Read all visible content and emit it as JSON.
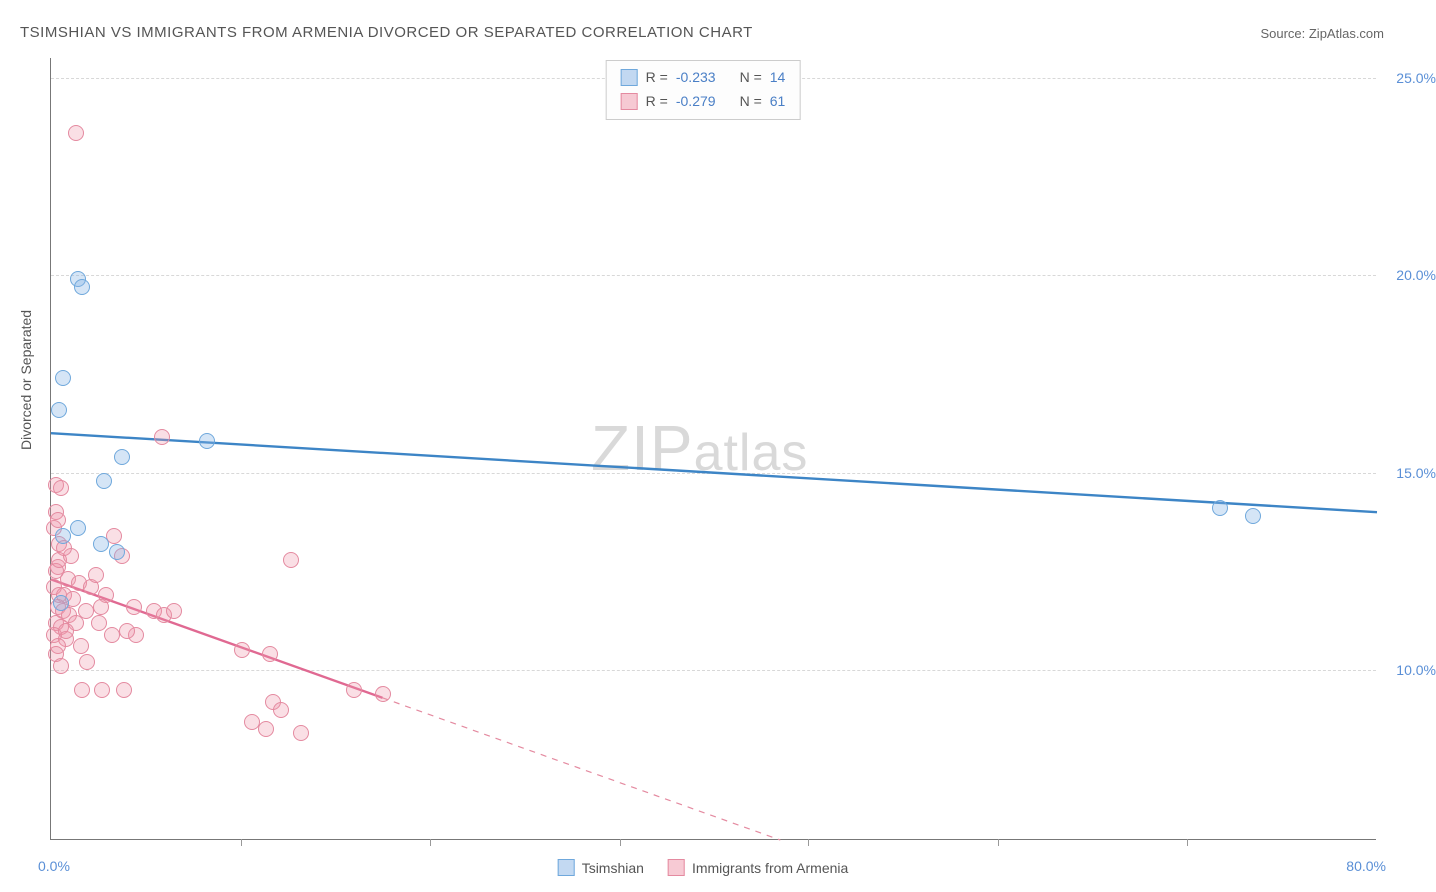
{
  "title": "TSIMSHIAN VS IMMIGRANTS FROM ARMENIA DIVORCED OR SEPARATED CORRELATION CHART",
  "source_label": "Source: ",
  "source_name": "ZipAtlas.com",
  "ylabel": "Divorced or Separated",
  "watermark_a": "ZIP",
  "watermark_b": "atlas",
  "xaxis": {
    "min": 0.0,
    "max": 80.0,
    "label_min": "0.0%",
    "label_max": "80.0%",
    "tick_positions_pct": [
      14.3,
      28.6,
      42.9,
      57.1,
      71.4,
      85.7
    ]
  },
  "yaxis": {
    "min": 5.7,
    "max": 25.5,
    "ticks": [
      {
        "v": 10.0,
        "label": "10.0%"
      },
      {
        "v": 15.0,
        "label": "15.0%"
      },
      {
        "v": 20.0,
        "label": "20.0%"
      },
      {
        "v": 25.0,
        "label": "25.0%"
      }
    ]
  },
  "series": {
    "blue": {
      "name": "Tsimshian",
      "color_fill": "rgba(135,180,230,0.35)",
      "color_stroke": "#6fa8dc",
      "line_color": "#3d85c6",
      "R": "-0.233",
      "N": "14",
      "trend": {
        "x1": 0.0,
        "y1": 16.0,
        "x2": 80.0,
        "y2": 14.0
      },
      "points": [
        {
          "x": 1.6,
          "y": 19.9
        },
        {
          "x": 1.9,
          "y": 19.7
        },
        {
          "x": 0.7,
          "y": 17.4
        },
        {
          "x": 0.5,
          "y": 16.6
        },
        {
          "x": 3.2,
          "y": 14.8
        },
        {
          "x": 4.3,
          "y": 15.4
        },
        {
          "x": 9.4,
          "y": 15.8
        },
        {
          "x": 3.0,
          "y": 13.2
        },
        {
          "x": 0.7,
          "y": 13.4
        },
        {
          "x": 1.6,
          "y": 13.6
        },
        {
          "x": 4.0,
          "y": 13.0
        },
        {
          "x": 0.6,
          "y": 11.7
        },
        {
          "x": 70.5,
          "y": 14.1
        },
        {
          "x": 72.5,
          "y": 13.9
        }
      ]
    },
    "pink": {
      "name": "Immigrants from Armenia",
      "color_fill": "rgba(240,150,170,0.30)",
      "color_stroke": "#e48aa0",
      "line_color": "#e06992",
      "R": "-0.279",
      "N": "61",
      "trend": {
        "x1": 0.0,
        "y1": 12.3,
        "x2": 20.0,
        "y2": 9.3
      },
      "trend_dash": {
        "x1": 20.0,
        "y1": 9.3,
        "x2": 44.0,
        "y2": 5.7
      },
      "points": [
        {
          "x": 1.5,
          "y": 23.6
        },
        {
          "x": 6.7,
          "y": 15.9
        },
        {
          "x": 0.3,
          "y": 14.7
        },
        {
          "x": 0.6,
          "y": 14.6
        },
        {
          "x": 3.8,
          "y": 13.4
        },
        {
          "x": 0.3,
          "y": 14.0
        },
        {
          "x": 0.5,
          "y": 13.2
        },
        {
          "x": 4.3,
          "y": 12.9
        },
        {
          "x": 14.5,
          "y": 12.8
        },
        {
          "x": 0.4,
          "y": 12.6
        },
        {
          "x": 1.0,
          "y": 12.3
        },
        {
          "x": 1.7,
          "y": 12.2
        },
        {
          "x": 0.3,
          "y": 12.5
        },
        {
          "x": 0.2,
          "y": 12.1
        },
        {
          "x": 2.4,
          "y": 12.1
        },
        {
          "x": 0.5,
          "y": 11.9
        },
        {
          "x": 0.8,
          "y": 11.9
        },
        {
          "x": 1.3,
          "y": 11.8
        },
        {
          "x": 3.3,
          "y": 11.9
        },
        {
          "x": 5.0,
          "y": 11.6
        },
        {
          "x": 0.4,
          "y": 11.6
        },
        {
          "x": 0.7,
          "y": 11.5
        },
        {
          "x": 1.1,
          "y": 11.4
        },
        {
          "x": 2.1,
          "y": 11.5
        },
        {
          "x": 6.2,
          "y": 11.5
        },
        {
          "x": 6.8,
          "y": 11.4
        },
        {
          "x": 7.4,
          "y": 11.5
        },
        {
          "x": 0.3,
          "y": 11.2
        },
        {
          "x": 0.6,
          "y": 11.1
        },
        {
          "x": 1.5,
          "y": 11.2
        },
        {
          "x": 2.9,
          "y": 11.2
        },
        {
          "x": 0.2,
          "y": 10.9
        },
        {
          "x": 0.9,
          "y": 10.8
        },
        {
          "x": 3.7,
          "y": 10.9
        },
        {
          "x": 5.1,
          "y": 10.9
        },
        {
          "x": 0.4,
          "y": 10.6
        },
        {
          "x": 1.8,
          "y": 10.6
        },
        {
          "x": 0.3,
          "y": 10.4
        },
        {
          "x": 11.5,
          "y": 10.5
        },
        {
          "x": 13.2,
          "y": 10.4
        },
        {
          "x": 0.6,
          "y": 10.1
        },
        {
          "x": 1.9,
          "y": 9.5
        },
        {
          "x": 3.1,
          "y": 9.5
        },
        {
          "x": 4.4,
          "y": 9.5
        },
        {
          "x": 18.3,
          "y": 9.5
        },
        {
          "x": 20.0,
          "y": 9.4
        },
        {
          "x": 13.4,
          "y": 9.2
        },
        {
          "x": 13.9,
          "y": 9.0
        },
        {
          "x": 12.1,
          "y": 8.7
        },
        {
          "x": 15.1,
          "y": 8.4
        },
        {
          "x": 13.0,
          "y": 8.5
        },
        {
          "x": 0.9,
          "y": 11.0
        },
        {
          "x": 2.2,
          "y": 10.2
        },
        {
          "x": 0.5,
          "y": 12.8
        },
        {
          "x": 1.2,
          "y": 12.9
        },
        {
          "x": 0.2,
          "y": 13.6
        },
        {
          "x": 0.8,
          "y": 13.1
        },
        {
          "x": 3.0,
          "y": 11.6
        },
        {
          "x": 4.6,
          "y": 11.0
        },
        {
          "x": 2.7,
          "y": 12.4
        },
        {
          "x": 0.4,
          "y": 13.8
        }
      ]
    }
  },
  "legend_bottom": [
    "Tsimshian",
    "Immigrants from Armenia"
  ],
  "legend_top_labels": {
    "R": "R =",
    "N": "N ="
  }
}
